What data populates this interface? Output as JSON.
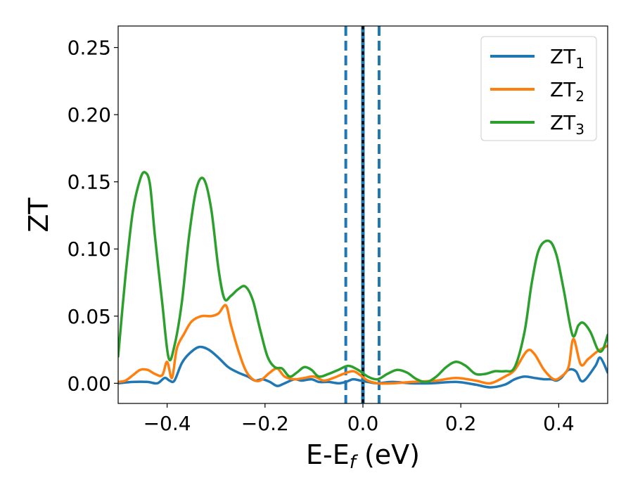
{
  "chart_data": {
    "type": "line",
    "xlabel_main": "E-E",
    "xlabel_sub": "f",
    "xlabel_unit": " (eV)",
    "ylabel": "ZT",
    "xlim": [
      -0.5,
      0.5
    ],
    "ylim": [
      -0.015,
      0.266
    ],
    "xticks": [
      -0.4,
      -0.2,
      0.0,
      0.2,
      0.4
    ],
    "xtick_labels": [
      "−0.4",
      "−0.2",
      "0.0",
      "0.2",
      "0.4"
    ],
    "yticks": [
      0.0,
      0.05,
      0.1,
      0.15,
      0.2,
      0.25
    ],
    "ytick_labels": [
      "0.00",
      "0.05",
      "0.10",
      "0.15",
      "0.20",
      "0.25"
    ],
    "grid": false,
    "legend_position": "top-right",
    "vertical_lines": [
      {
        "x": -0.035,
        "style": "dashed",
        "color": "#1f77b4"
      },
      {
        "x": 0.033,
        "style": "dashed",
        "color": "#1f77b4"
      },
      {
        "x": 0.0,
        "style": "solid",
        "color": "#1f77b4"
      },
      {
        "x": 0.0,
        "style": "dashed",
        "color": "#000000"
      }
    ],
    "series": [
      {
        "name": "ZT",
        "sub": "1",
        "color": "#1f77b4",
        "points": [
          [
            -0.5,
            0.0
          ],
          [
            -0.47,
            0.001
          ],
          [
            -0.44,
            0.001
          ],
          [
            -0.42,
            0.0
          ],
          [
            -0.405,
            0.004
          ],
          [
            -0.395,
            0.002
          ],
          [
            -0.385,
            0.002
          ],
          [
            -0.37,
            0.015
          ],
          [
            -0.355,
            0.022
          ],
          [
            -0.335,
            0.027
          ],
          [
            -0.315,
            0.025
          ],
          [
            -0.295,
            0.019
          ],
          [
            -0.275,
            0.012
          ],
          [
            -0.255,
            0.008
          ],
          [
            -0.235,
            0.005
          ],
          [
            -0.22,
            0.002
          ],
          [
            -0.205,
            0.003
          ],
          [
            -0.19,
            0.001
          ],
          [
            -0.175,
            -0.002
          ],
          [
            -0.16,
            0.0
          ],
          [
            -0.14,
            0.003
          ],
          [
            -0.125,
            0.002
          ],
          [
            -0.105,
            0.003
          ],
          [
            -0.09,
            0.001
          ],
          [
            -0.07,
            0.001
          ],
          [
            -0.05,
            0.0
          ],
          [
            -0.035,
            0.001
          ],
          [
            -0.02,
            0.003
          ],
          [
            -0.005,
            0.002
          ],
          [
            0.01,
            0.001
          ],
          [
            0.03,
            0.0
          ],
          [
            0.06,
            0.001
          ],
          [
            0.1,
            0.0
          ],
          [
            0.14,
            0.0
          ],
          [
            0.19,
            0.001
          ],
          [
            0.23,
            -0.001
          ],
          [
            0.26,
            -0.003
          ],
          [
            0.29,
            -0.001
          ],
          [
            0.31,
            0.003
          ],
          [
            0.33,
            0.005
          ],
          [
            0.35,
            0.004
          ],
          [
            0.37,
            0.003
          ],
          [
            0.385,
            0.003
          ],
          [
            0.395,
            0.002
          ],
          [
            0.405,
            0.004
          ],
          [
            0.42,
            0.01
          ],
          [
            0.435,
            0.009
          ],
          [
            0.445,
            0.002
          ],
          [
            0.455,
            0.003
          ],
          [
            0.475,
            0.013
          ],
          [
            0.485,
            0.019
          ],
          [
            0.5,
            0.008
          ]
        ]
      },
      {
        "name": "ZT",
        "sub": "2",
        "color": "#ff7f0e",
        "points": [
          [
            -0.5,
            0.001
          ],
          [
            -0.485,
            0.002
          ],
          [
            -0.47,
            0.006
          ],
          [
            -0.455,
            0.01
          ],
          [
            -0.44,
            0.01
          ],
          [
            -0.425,
            0.007
          ],
          [
            -0.41,
            0.006
          ],
          [
            -0.4,
            0.016
          ],
          [
            -0.39,
            0.004
          ],
          [
            -0.38,
            0.026
          ],
          [
            -0.365,
            0.037
          ],
          [
            -0.35,
            0.046
          ],
          [
            -0.33,
            0.05
          ],
          [
            -0.31,
            0.05
          ],
          [
            -0.295,
            0.052
          ],
          [
            -0.28,
            0.058
          ],
          [
            -0.27,
            0.044
          ],
          [
            -0.255,
            0.025
          ],
          [
            -0.24,
            0.01
          ],
          [
            -0.225,
            0.003
          ],
          [
            -0.21,
            0.002
          ],
          [
            -0.19,
            0.008
          ],
          [
            -0.175,
            0.011
          ],
          [
            -0.16,
            0.005
          ],
          [
            -0.14,
            0.003
          ],
          [
            -0.12,
            0.004
          ],
          [
            -0.1,
            0.005
          ],
          [
            -0.08,
            0.002
          ],
          [
            -0.06,
            0.004
          ],
          [
            -0.04,
            0.007
          ],
          [
            -0.02,
            0.009
          ],
          [
            -0.005,
            0.006
          ],
          [
            0.01,
            0.002
          ],
          [
            0.03,
            0.0
          ],
          [
            0.06,
            0.0
          ],
          [
            0.1,
            0.001
          ],
          [
            0.15,
            0.002
          ],
          [
            0.19,
            0.004
          ],
          [
            0.23,
            0.002
          ],
          [
            0.26,
            0.0
          ],
          [
            0.29,
            0.005
          ],
          [
            0.31,
            0.01
          ],
          [
            0.335,
            0.024
          ],
          [
            0.35,
            0.022
          ],
          [
            0.37,
            0.01
          ],
          [
            0.39,
            0.003
          ],
          [
            0.405,
            0.005
          ],
          [
            0.42,
            0.012
          ],
          [
            0.43,
            0.033
          ],
          [
            0.445,
            0.014
          ],
          [
            0.46,
            0.018
          ],
          [
            0.48,
            0.024
          ],
          [
            0.5,
            0.028
          ]
        ]
      },
      {
        "name": "ZT",
        "sub": "3",
        "color": "#2ca02c",
        "points": [
          [
            -0.5,
            0.02
          ],
          [
            -0.485,
            0.08
          ],
          [
            -0.47,
            0.128
          ],
          [
            -0.455,
            0.152
          ],
          [
            -0.445,
            0.157
          ],
          [
            -0.435,
            0.148
          ],
          [
            -0.425,
            0.11
          ],
          [
            -0.41,
            0.06
          ],
          [
            -0.397,
            0.019
          ],
          [
            -0.385,
            0.028
          ],
          [
            -0.37,
            0.06
          ],
          [
            -0.355,
            0.11
          ],
          [
            -0.34,
            0.145
          ],
          [
            -0.325,
            0.152
          ],
          [
            -0.31,
            0.13
          ],
          [
            -0.295,
            0.085
          ],
          [
            -0.283,
            0.063
          ],
          [
            -0.27,
            0.065
          ],
          [
            -0.255,
            0.07
          ],
          [
            -0.24,
            0.072
          ],
          [
            -0.225,
            0.062
          ],
          [
            -0.21,
            0.04
          ],
          [
            -0.195,
            0.02
          ],
          [
            -0.18,
            0.012
          ],
          [
            -0.165,
            0.011
          ],
          [
            -0.15,
            0.005
          ],
          [
            -0.135,
            0.008
          ],
          [
            -0.12,
            0.012
          ],
          [
            -0.105,
            0.01
          ],
          [
            -0.09,
            0.005
          ],
          [
            -0.07,
            0.007
          ],
          [
            -0.05,
            0.01
          ],
          [
            -0.03,
            0.013
          ],
          [
            -0.01,
            0.01
          ],
          [
            0.01,
            0.005
          ],
          [
            0.03,
            0.003
          ],
          [
            0.05,
            0.007
          ],
          [
            0.07,
            0.01
          ],
          [
            0.09,
            0.008
          ],
          [
            0.11,
            0.003
          ],
          [
            0.13,
            0.001
          ],
          [
            0.15,
            0.005
          ],
          [
            0.17,
            0.012
          ],
          [
            0.19,
            0.016
          ],
          [
            0.21,
            0.013
          ],
          [
            0.23,
            0.007
          ],
          [
            0.25,
            0.007
          ],
          [
            0.27,
            0.009
          ],
          [
            0.29,
            0.009
          ],
          [
            0.31,
            0.012
          ],
          [
            0.33,
            0.038
          ],
          [
            0.345,
            0.075
          ],
          [
            0.36,
            0.1
          ],
          [
            0.38,
            0.106
          ],
          [
            0.395,
            0.096
          ],
          [
            0.41,
            0.07
          ],
          [
            0.428,
            0.036
          ],
          [
            0.44,
            0.043
          ],
          [
            0.45,
            0.045
          ],
          [
            0.465,
            0.038
          ],
          [
            0.48,
            0.025
          ],
          [
            0.49,
            0.025
          ],
          [
            0.5,
            0.036
          ]
        ]
      }
    ]
  }
}
